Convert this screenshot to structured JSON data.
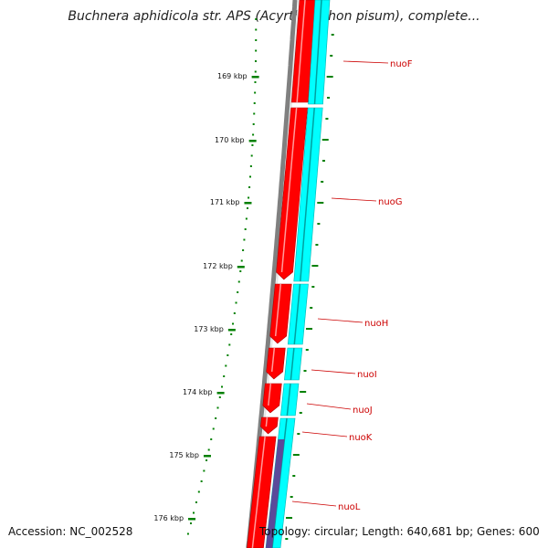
{
  "title": "Buchnera aphidicola str. APS (Acyrthosiphon pisum), complete...",
  "accession": "Accession: NC_002528",
  "summary": "Topology: circular; Length: 640,681 bp; Genes: 600",
  "colors": {
    "forward_strand": "#ff0000",
    "reverse_strand": "#00ffff",
    "backbone": "#808080",
    "ticks": "#008000",
    "gene_label": "#cc0000",
    "other_feature": "#5a4a9a"
  },
  "scale_labels": [
    "169 kbp",
    "170 kbp",
    "171 kbp",
    "172 kbp",
    "173 kbp",
    "174 kbp",
    "175 kbp",
    "176 kbp"
  ],
  "genes": [
    {
      "name": "nuoF"
    },
    {
      "name": "nuoG"
    },
    {
      "name": "nuoH"
    },
    {
      "name": "nuoI"
    },
    {
      "name": "nuoJ"
    },
    {
      "name": "nuoK"
    },
    {
      "name": "nuoL"
    }
  ]
}
